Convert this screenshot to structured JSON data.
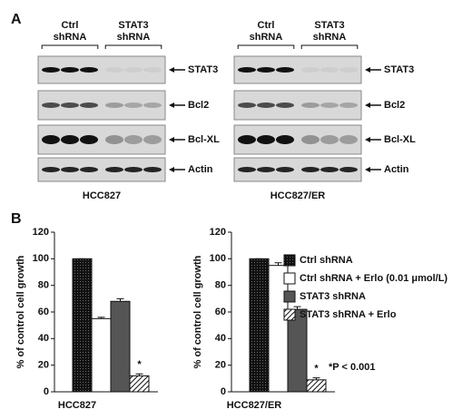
{
  "panel_a": {
    "label": "A",
    "blots": [
      {
        "headers": [
          [
            "Ctrl",
            "shRNA"
          ],
          [
            "STAT3",
            "shRNA"
          ]
        ],
        "row_labels": [
          "STAT3",
          "Bcl2",
          "Bcl-XL",
          "Actin"
        ],
        "cell_line": "HCC827"
      },
      {
        "headers": [
          [
            "Ctrl",
            "shRNA"
          ],
          [
            "STAT3",
            "shRNA"
          ]
        ],
        "row_labels": [
          "STAT3",
          "Bcl2",
          "Bcl-XL",
          "Actin"
        ],
        "cell_line": "HCC827/ER"
      }
    ]
  },
  "panel_b_label": "B",
  "chart_data": [
    {
      "type": "bar",
      "ylabel": "% of control cell growth",
      "categories": [
        "HCC827"
      ],
      "ylim": [
        0,
        120
      ],
      "yticks": [
        0,
        20,
        40,
        60,
        80,
        100,
        120
      ],
      "legend": false,
      "series": [
        {
          "name": "Ctrl shRNA",
          "color": "#111111",
          "pattern": "dots",
          "values": [
            100
          ],
          "errors": [
            0
          ]
        },
        {
          "name": "Ctrl shRNA + Erlo (0.01 μmol/L)",
          "color": "#ffffff",
          "pattern": "solid",
          "values": [
            55
          ],
          "errors": [
            1
          ]
        },
        {
          "name": "STAT3 shRNA",
          "color": "#555555",
          "pattern": "solid",
          "values": [
            68
          ],
          "errors": [
            2
          ]
        },
        {
          "name": "STAT3 shRNA + Erlo",
          "color": "#111111",
          "pattern": "hatch",
          "values": [
            12
          ],
          "errors": [
            1.5
          ],
          "mark_label": "*"
        }
      ]
    },
    {
      "type": "bar",
      "ylabel": "% of control cell growth",
      "categories": [
        "HCC827/ER"
      ],
      "ylim": [
        0,
        120
      ],
      "yticks": [
        0,
        20,
        40,
        60,
        80,
        100,
        120
      ],
      "legend": true,
      "note": "*P < 0.001",
      "series": [
        {
          "name": "Ctrl shRNA",
          "color": "#111111",
          "pattern": "dots",
          "values": [
            100
          ],
          "errors": [
            0
          ]
        },
        {
          "name": "Ctrl shRNA + Erlo (0.01 μmol/L)",
          "color": "#ffffff",
          "pattern": "solid",
          "values": [
            95
          ],
          "errors": [
            2
          ]
        },
        {
          "name": "STAT3 shRNA",
          "color": "#555555",
          "pattern": "solid",
          "values": [
            62
          ],
          "errors": [
            2
          ]
        },
        {
          "name": "STAT3 shRNA + Erlo",
          "color": "#111111",
          "pattern": "hatch",
          "values": [
            9
          ],
          "errors": [
            1.5
          ],
          "mark_label": "*"
        }
      ]
    }
  ]
}
